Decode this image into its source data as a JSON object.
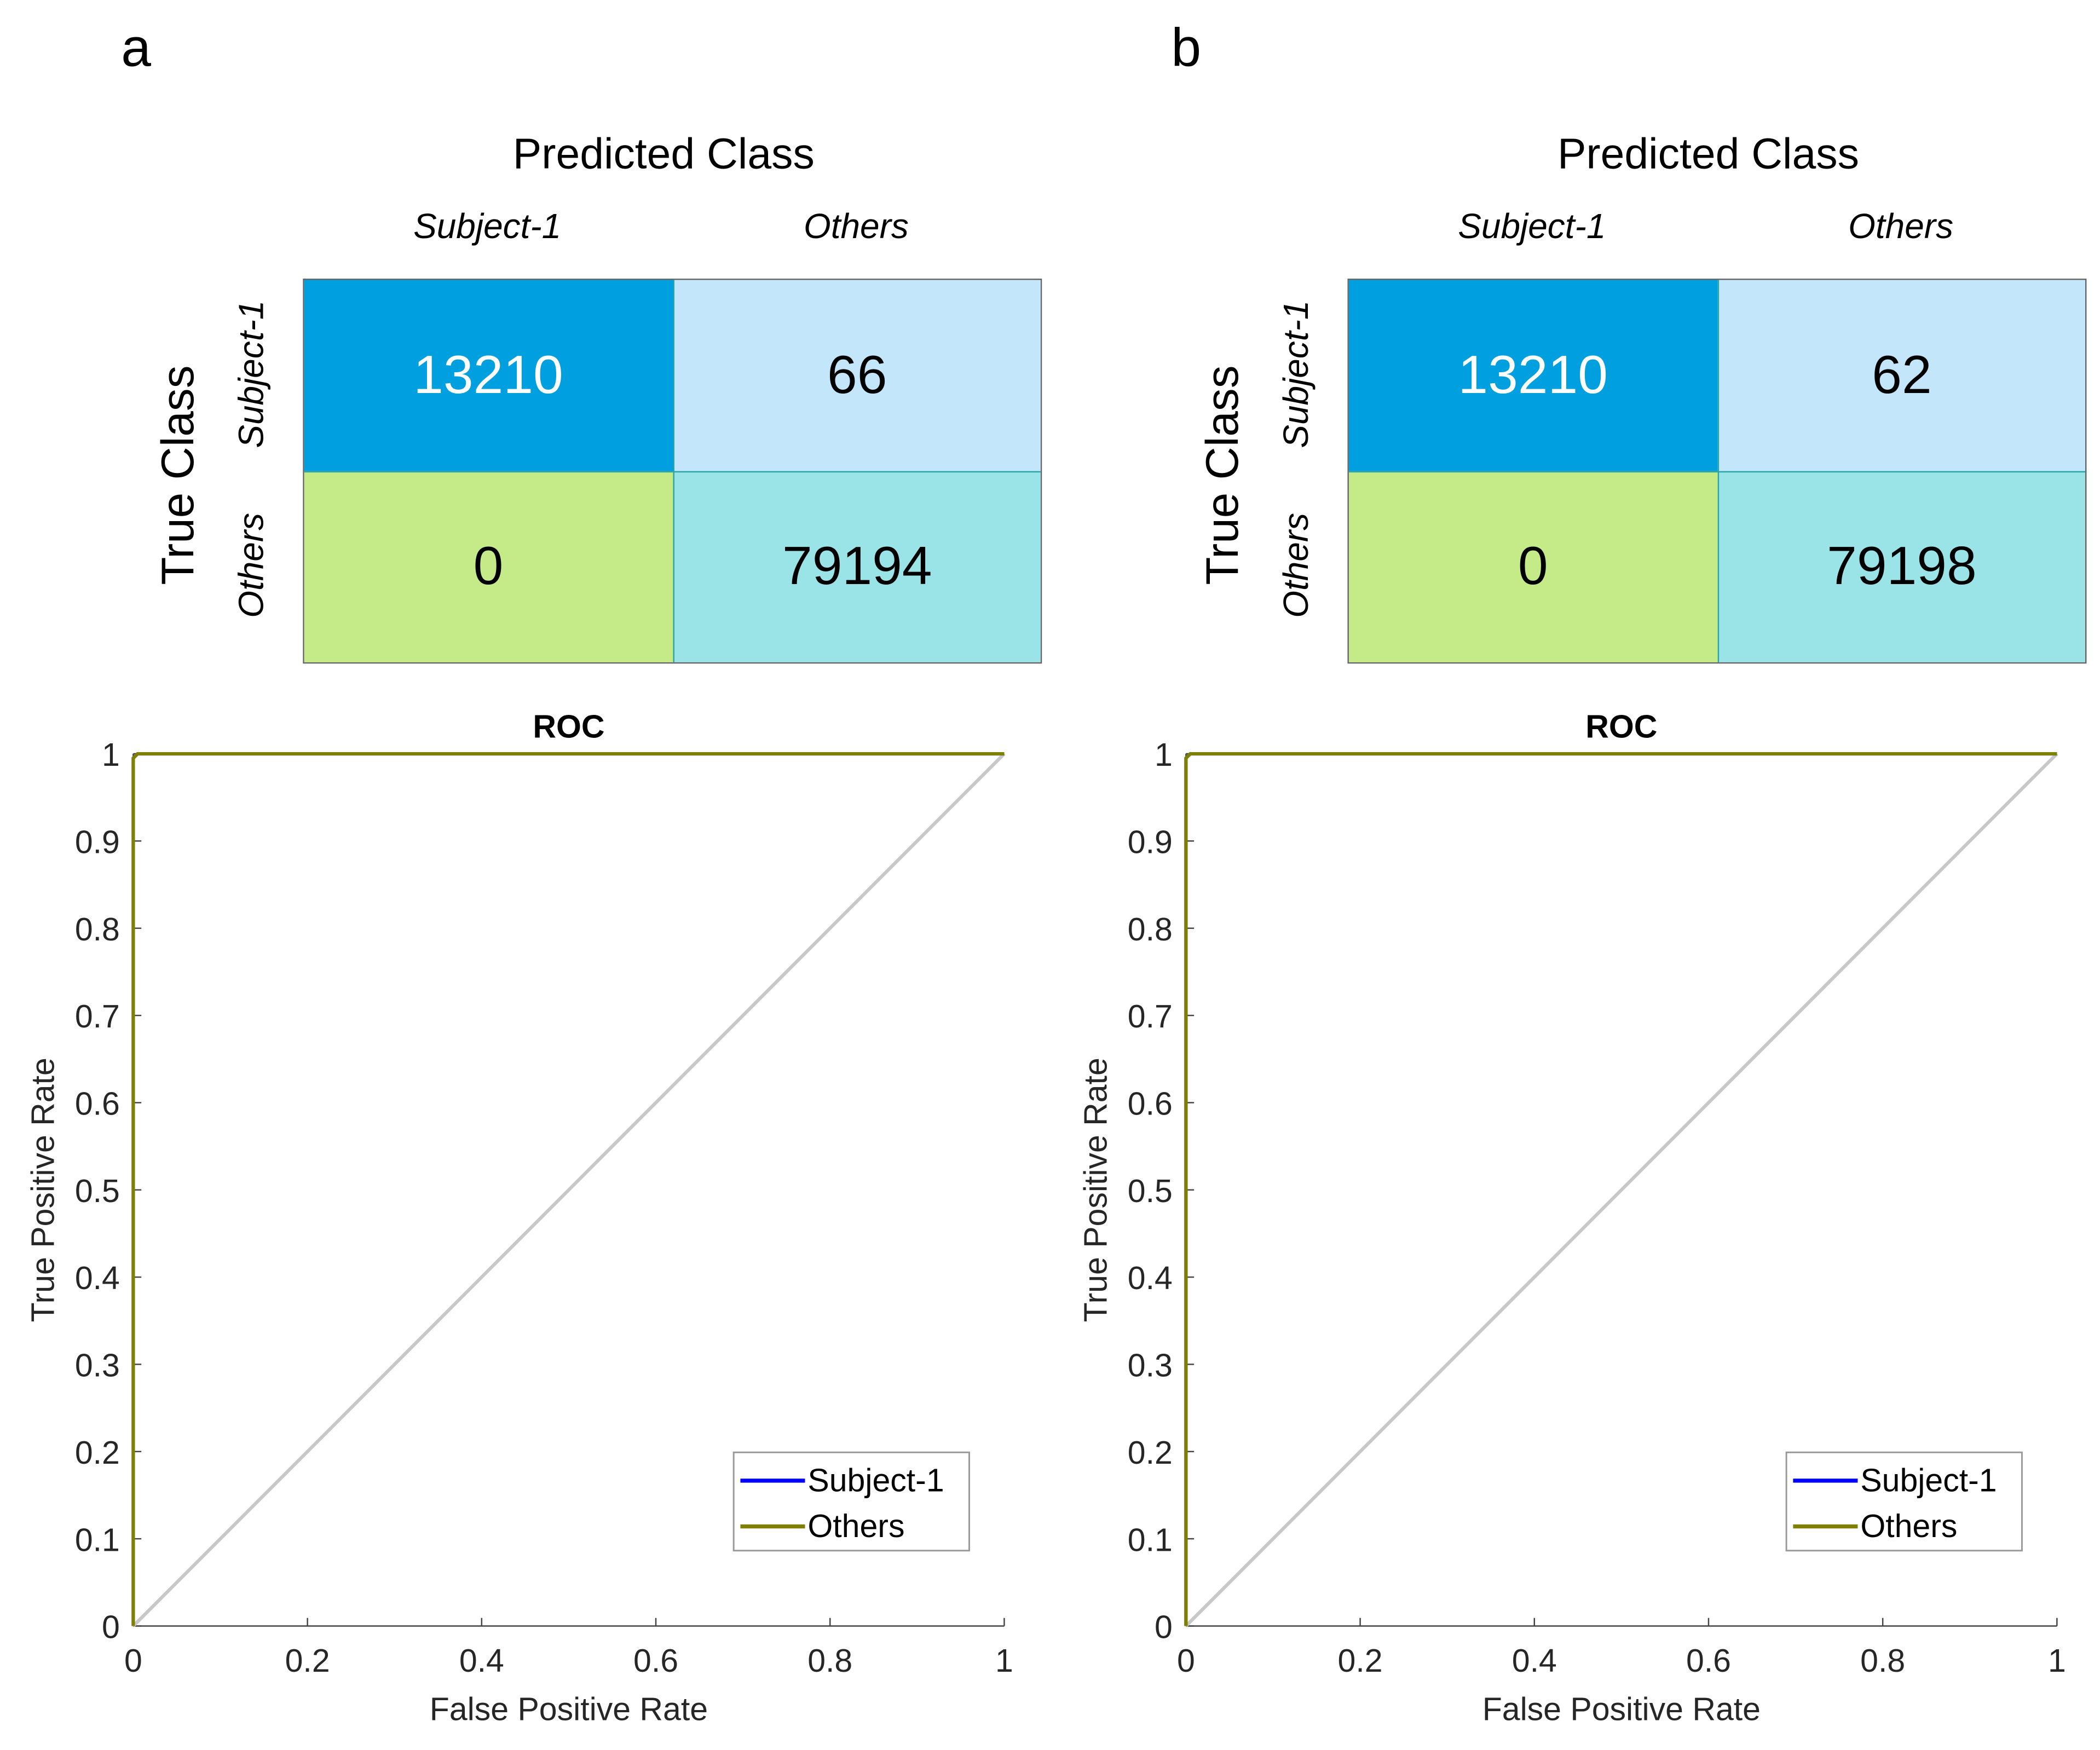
{
  "panels": [
    {
      "label": "a",
      "predicted_title": "Predicted Class",
      "true_title": "True Class",
      "classes": [
        "Subject-1",
        "Others"
      ],
      "matrix": [
        [
          "13210",
          "66"
        ],
        [
          "0",
          "79194"
        ]
      ]
    },
    {
      "label": "b",
      "predicted_title": "Predicted Class",
      "true_title": "True Class",
      "classes": [
        "Subject-1",
        "Others"
      ],
      "matrix": [
        [
          "13210",
          "62"
        ],
        [
          "0",
          "79198"
        ]
      ]
    }
  ],
  "colors": {
    "tp": "#00a0e0",
    "fn": "#c3e6fb",
    "fp": "#c4eb88",
    "tn": "#9ae4e8",
    "subject": "#0000ff",
    "others": "#808000",
    "diag": "#c8c8c8"
  },
  "chart_data": [
    {
      "type": "line",
      "title": "ROC",
      "xlabel": "False Positive Rate",
      "ylabel": "True Positive Rate",
      "xlim": [
        0,
        1
      ],
      "ylim": [
        0,
        1
      ],
      "xticks": [
        "0",
        "0.2",
        "0.4",
        "0.6",
        "0.8",
        "1"
      ],
      "yticks": [
        "0",
        "0.1",
        "0.2",
        "0.3",
        "0.4",
        "0.5",
        "0.6",
        "0.7",
        "0.8",
        "0.9",
        "1"
      ],
      "legend_position": "bottom-right",
      "series": [
        {
          "name": "Subject-1",
          "x": [
            0,
            0,
            0.005,
            1
          ],
          "y": [
            0,
            0.995,
            1,
            1
          ]
        },
        {
          "name": "Others",
          "x": [
            0,
            0,
            0.005,
            1
          ],
          "y": [
            0,
            0.995,
            1,
            1
          ]
        }
      ],
      "reference": {
        "x": [
          0,
          1
        ],
        "y": [
          0,
          1
        ]
      }
    },
    {
      "type": "line",
      "title": "ROC",
      "xlabel": "False Positive Rate",
      "ylabel": "True Positive Rate",
      "xlim": [
        0,
        1
      ],
      "ylim": [
        0,
        1
      ],
      "xticks": [
        "0",
        "0.2",
        "0.4",
        "0.6",
        "0.8",
        "1"
      ],
      "yticks": [
        "0",
        "0.1",
        "0.2",
        "0.3",
        "0.4",
        "0.5",
        "0.6",
        "0.7",
        "0.8",
        "0.9",
        "1"
      ],
      "legend_position": "bottom-right",
      "series": [
        {
          "name": "Subject-1",
          "x": [
            0,
            0,
            0.005,
            1
          ],
          "y": [
            0,
            0.995,
            1,
            1
          ]
        },
        {
          "name": "Others",
          "x": [
            0,
            0,
            0.005,
            1
          ],
          "y": [
            0,
            0.995,
            1,
            1
          ]
        }
      ],
      "reference": {
        "x": [
          0,
          1
        ],
        "y": [
          0,
          1
        ]
      }
    }
  ]
}
